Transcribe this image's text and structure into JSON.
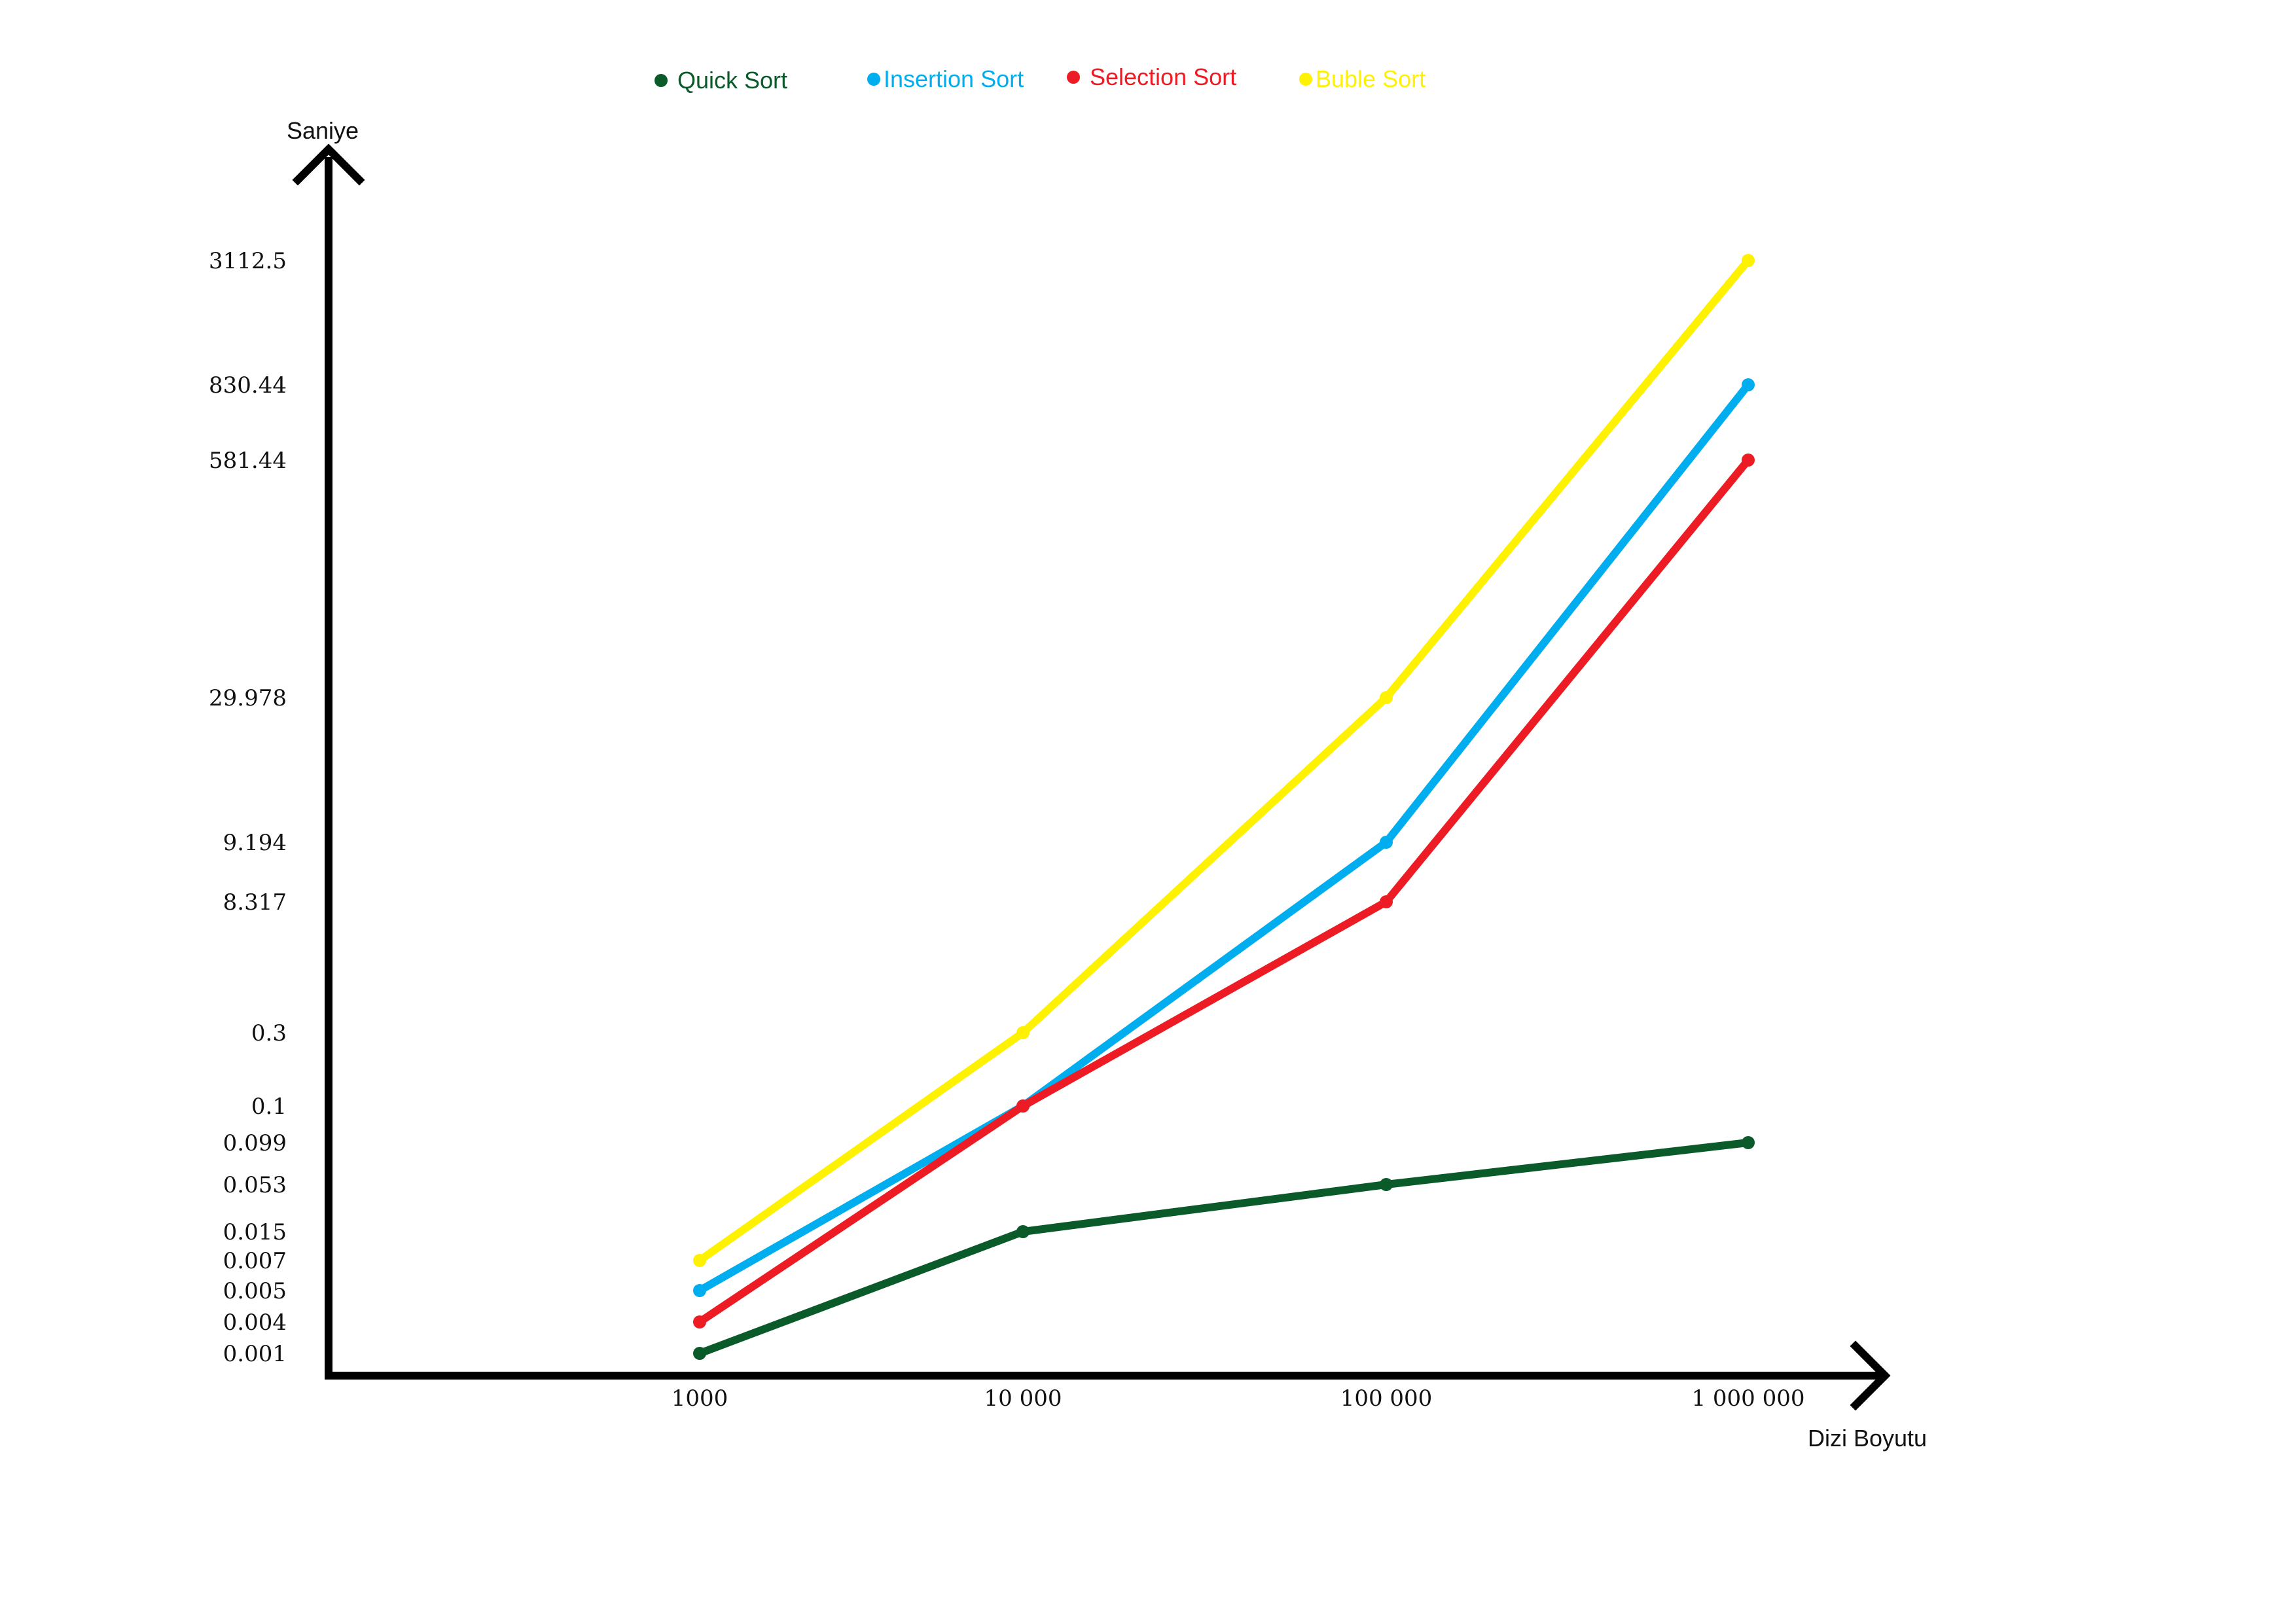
{
  "chart_data": {
    "type": "line",
    "title": "",
    "xlabel": "Dizi Boyutu",
    "ylabel": "Saniye",
    "categories": [
      "1000",
      "10 000",
      "100 000",
      "1 000 000"
    ],
    "y_tick_labels": [
      "3112.5",
      "830.44",
      "581.44",
      "29.978",
      "9.194",
      "8.317",
      "0.3",
      "0.1",
      "0.099",
      "0.053",
      "0.015",
      "0.007",
      "0.005",
      "0.004",
      "0.001"
    ],
    "grid": false,
    "legend_position": "top",
    "series": [
      {
        "name": "Quick Sort",
        "color": "#0a5a2a",
        "values": [
          0.001,
          0.015,
          0.053,
          0.099
        ]
      },
      {
        "name": "Insertion Sort",
        "color": "#00aeef",
        "values": [
          0.005,
          0.1,
          9.194,
          830.44
        ]
      },
      {
        "name": "Selection Sort",
        "color": "#ed1c24",
        "values": [
          0.004,
          0.1,
          8.317,
          581.44
        ]
      },
      {
        "name": "Buble Sort",
        "color": "#fff200",
        "values": [
          0.007,
          0.3,
          29.978,
          3112.5
        ]
      }
    ]
  }
}
